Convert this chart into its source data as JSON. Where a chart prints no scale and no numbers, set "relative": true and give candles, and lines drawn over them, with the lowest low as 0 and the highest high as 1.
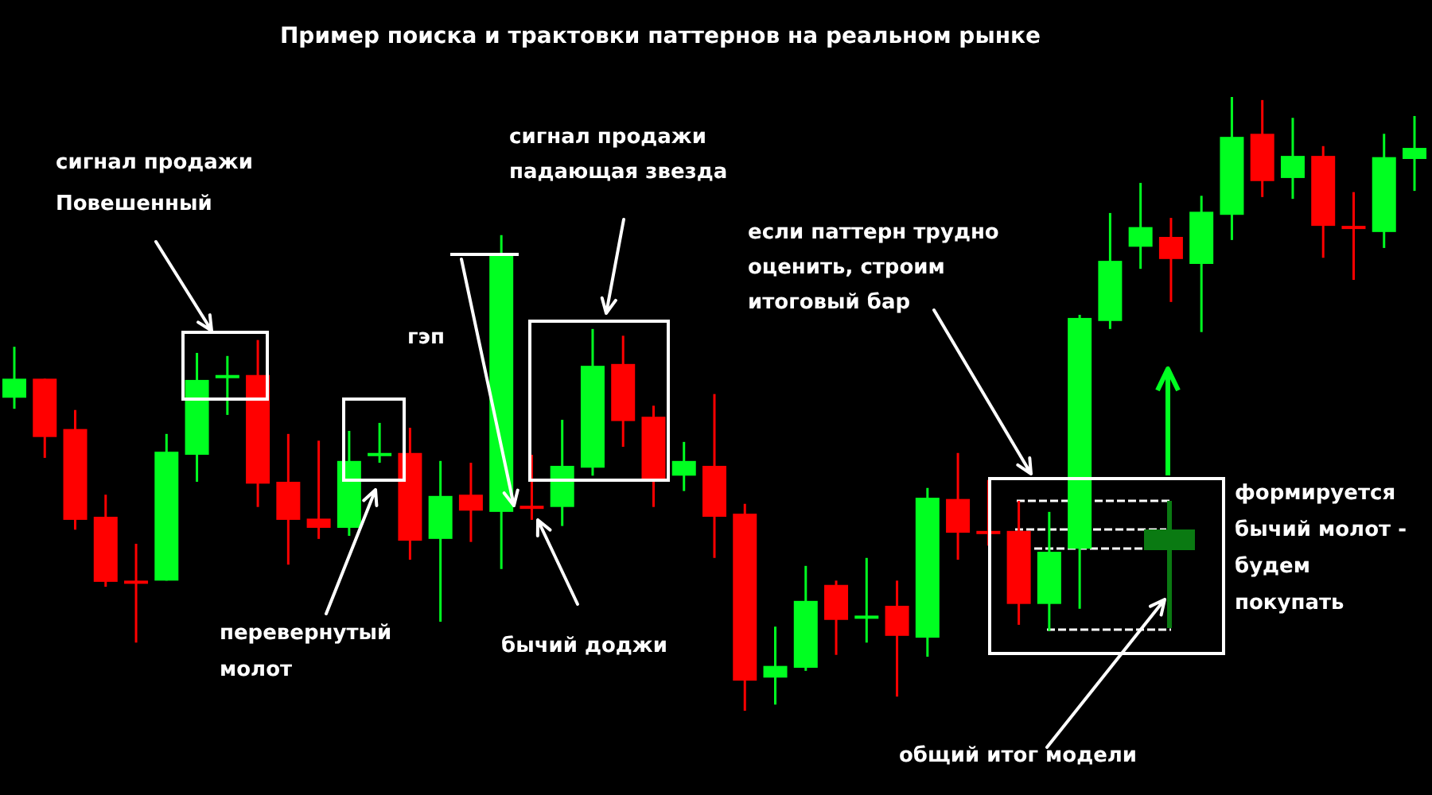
{
  "chart_data": {
    "type": "candlestick",
    "relative": true,
    "title": "Пример поиска и трактовки паттернов на реальном рынке",
    "categories": [
      null,
      null,
      null,
      null,
      null,
      null,
      null,
      null,
      null,
      null,
      null,
      null,
      null,
      null,
      null,
      null,
      null,
      null,
      null,
      null,
      null,
      null,
      null,
      null,
      null,
      null,
      null,
      null,
      null,
      null,
      null,
      null,
      null,
      null,
      null,
      null,
      null,
      null,
      null,
      null,
      null,
      null,
      null,
      null,
      null,
      null,
      null
    ],
    "ohlc": [
      [
        0.51,
        0.593,
        0.492,
        0.541
      ],
      [
        0.541,
        0.541,
        0.412,
        0.446
      ],
      [
        0.459,
        0.49,
        0.295,
        0.311
      ],
      [
        0.316,
        0.352,
        0.202,
        0.21
      ],
      [
        0.212,
        0.272,
        0.111,
        0.21
      ],
      [
        0.212,
        0.451,
        0.212,
        0.422
      ],
      [
        0.417,
        0.583,
        0.373,
        0.539
      ],
      [
        0.544,
        0.578,
        0.482,
        0.547
      ],
      [
        0.547,
        0.604,
        0.332,
        0.37
      ],
      [
        0.373,
        0.451,
        0.238,
        0.311
      ],
      [
        0.313,
        0.44,
        0.28,
        0.298
      ],
      [
        0.298,
        0.456,
        0.285,
        0.407
      ],
      [
        0.417,
        0.469,
        0.404,
        0.42
      ],
      [
        0.42,
        0.461,
        0.246,
        0.277
      ],
      [
        0.28,
        0.407,
        0.145,
        0.35
      ],
      [
        0.352,
        0.404,
        0.275,
        0.326
      ],
      [
        0.324,
        0.775,
        0.231,
        0.741
      ],
      [
        0.334,
        0.417,
        0.311,
        0.332
      ],
      [
        0.332,
        0.474,
        0.301,
        0.399
      ],
      [
        0.396,
        0.622,
        0.383,
        0.562
      ],
      [
        0.565,
        0.611,
        0.43,
        0.472
      ],
      [
        0.479,
        0.497,
        0.332,
        0.378
      ],
      [
        0.383,
        0.438,
        0.358,
        0.407
      ],
      [
        0.399,
        0.516,
        0.249,
        0.316
      ],
      [
        0.321,
        0.337,
        0,
        0.049
      ],
      [
        0.054,
        0.137,
        0.01,
        0.073
      ],
      [
        0.07,
        0.236,
        0.065,
        0.179
      ],
      [
        0.205,
        0.212,
        0.091,
        0.148
      ],
      [
        0.153,
        0.249,
        0.111,
        0.155
      ],
      [
        0.171,
        0.212,
        0.023,
        0.122
      ],
      [
        0.119,
        0.363,
        0.088,
        0.347
      ],
      [
        0.345,
        0.42,
        0.246,
        0.29
      ],
      [
        0.293,
        0.376,
        0.269,
        0.29
      ],
      [
        0.293,
        0.342,
        0.14,
        0.174
      ],
      [
        0.174,
        0.324,
        0.13,
        0.259
      ],
      [
        0.264,
        0.645,
        0.166,
        0.64
      ],
      [
        0.635,
        0.811,
        0.622,
        0.733
      ],
      [
        0.756,
        0.86,
        0.72,
        0.788
      ],
      [
        0.772,
        0.803,
        0.666,
        0.736
      ],
      [
        0.728,
        0.839,
        0.617,
        0.813
      ],
      [
        0.808,
        1,
        0.767,
        0.935
      ],
      [
        0.94,
        0.995,
        0.837,
        0.863
      ],
      [
        0.868,
        0.966,
        0.834,
        0.904
      ],
      [
        0.904,
        0.92,
        0.738,
        0.79
      ],
      [
        0.79,
        0.845,
        0.702,
        0.788
      ],
      [
        0.78,
        0.94,
        0.754,
        0.902
      ],
      [
        0.899,
        0.969,
        0.847,
        0.917
      ]
    ],
    "colors": [
      "#00ff21",
      "#ff0000",
      "#ff0000",
      "#ff0000",
      "#ff0000",
      "#00ff21",
      "#00ff21",
      "#00ff21",
      "#ff0000",
      "#ff0000",
      "#ff0000",
      "#00ff21",
      "#00ff21",
      "#ff0000",
      "#00ff21",
      "#ff0000",
      "#00ff21",
      "#ff0000",
      "#00ff21",
      "#00ff21",
      "#ff0000",
      "#ff0000",
      "#00ff21",
      "#ff0000",
      "#ff0000",
      "#00ff21",
      "#00ff21",
      "#ff0000",
      "#00ff21",
      "#ff0000",
      "#00ff21",
      "#ff0000",
      "#ff0000",
      "#ff0000",
      "#00ff21",
      "#00ff21",
      "#00ff21",
      "#00ff21",
      "#ff0000",
      "#00ff21",
      "#00ff21",
      "#ff0000",
      "#00ff21",
      "#ff0000",
      "#ff0000",
      "#00ff21",
      "#00ff21"
    ],
    "annotations": [
      "сигнал продажи\nПовешенный",
      "перевернутый\nмолот",
      "гэп",
      "бычий доджи",
      "сигнал продажи\nпадающая звезда",
      "если паттерн трудно\nоценить, строим\nитоговый бар",
      "формируется\nбычий молот -\nбудем\nпокупать",
      "общий итог модели"
    ]
  }
}
